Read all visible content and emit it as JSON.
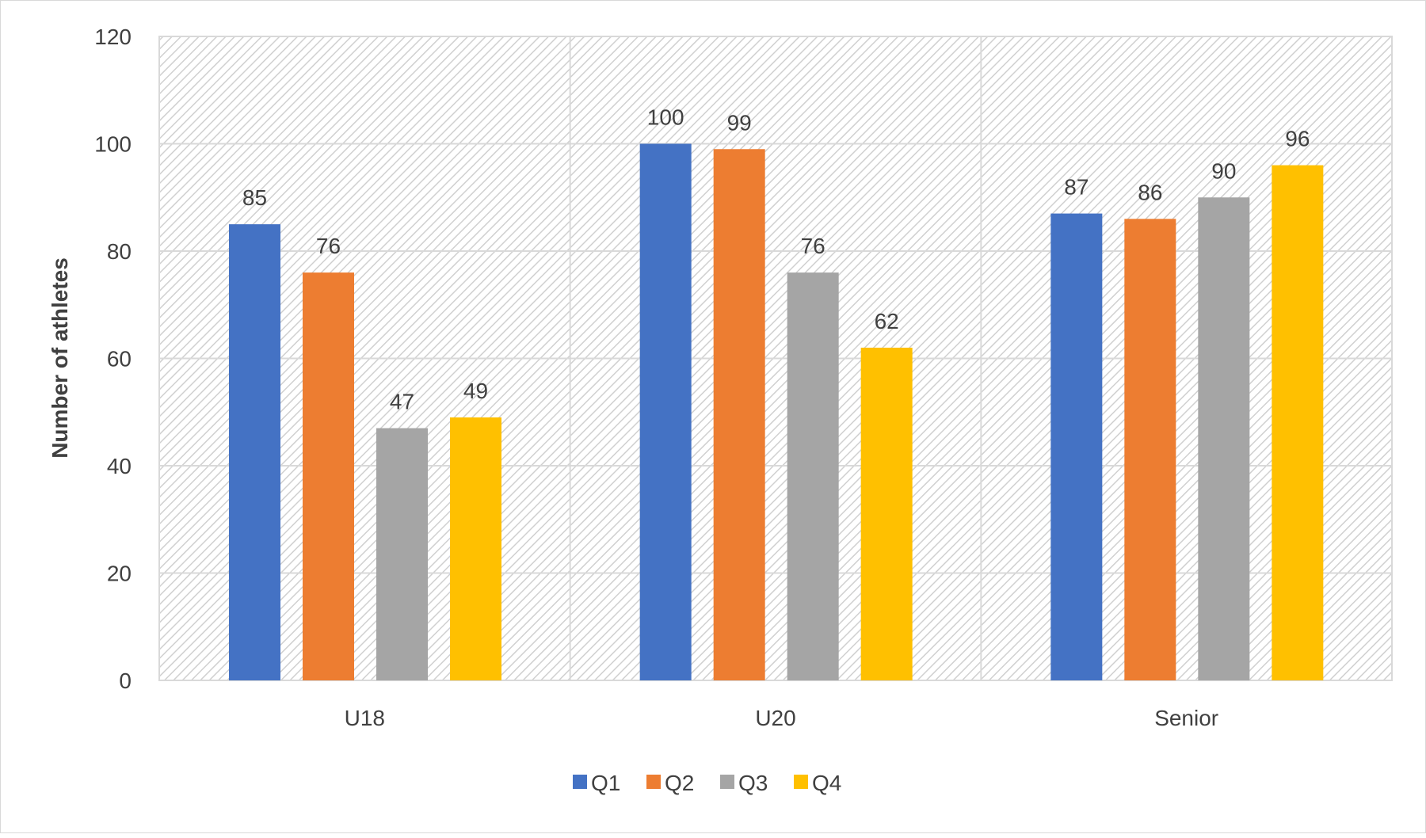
{
  "chart_data": {
    "type": "bar",
    "title": "",
    "xlabel": "",
    "ylabel": "Number of athletes",
    "ylim": [
      0,
      120
    ],
    "yticks": [
      0,
      20,
      40,
      60,
      80,
      100,
      120
    ],
    "grid": true,
    "legend_position": "bottom",
    "categories": [
      "U18",
      "U20",
      "Senior"
    ],
    "series": [
      {
        "name": "Q1",
        "color": "#4472C4",
        "values": [
          85,
          100,
          87
        ]
      },
      {
        "name": "Q2",
        "color": "#ED7D31",
        "values": [
          76,
          99,
          86
        ]
      },
      {
        "name": "Q3",
        "color": "#A5A5A5",
        "values": [
          47,
          76,
          90
        ]
      },
      {
        "name": "Q4",
        "color": "#FFC000",
        "values": [
          49,
          62,
          96
        ]
      }
    ]
  }
}
